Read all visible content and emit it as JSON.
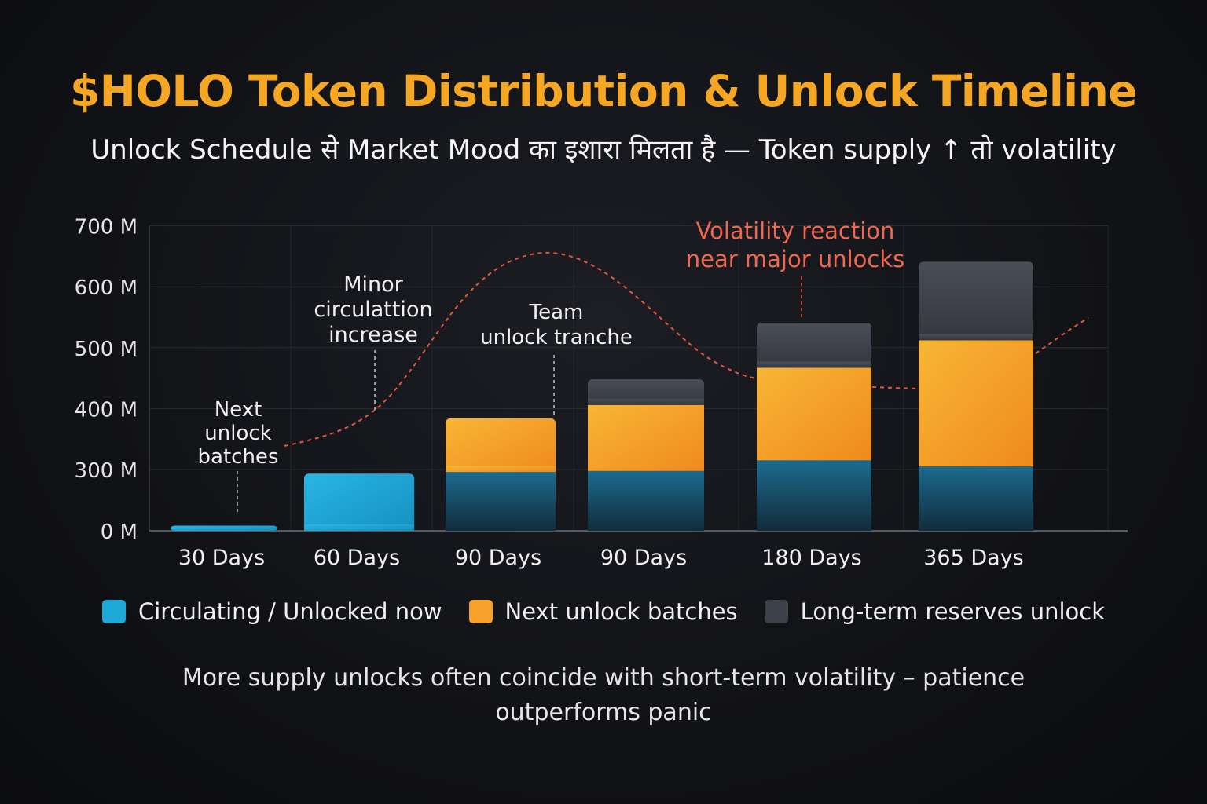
{
  "title": "$HOLO Token Distribution & Unlock Timeline",
  "subtitle": "Unlock Schedule से Market Mood का इशारा मिलता है — Token supply ↑ तो volatility",
  "footnote": {
    "line1": "More supply unlocks often coincide with short-term volatility – patience",
    "line2": "outperforms panic"
  },
  "colors": {
    "title": "#f5a623",
    "circulating": "#1fa9d6",
    "next_unlock": "#f5a12a",
    "reserves": "#3c4048",
    "annotation_red": "#f0674f"
  },
  "legend": [
    {
      "label": "Circulating / Unlocked now",
      "color": "#1fa9d6"
    },
    {
      "label": "Next unlock batches",
      "color": "#f5a12a"
    },
    {
      "label": "Long-term reserves unlock",
      "color": "#3c4048"
    }
  ],
  "chart_data": {
    "type": "bar",
    "stacked": true,
    "categories": [
      "30 Days",
      "60 Days",
      "90 Days",
      "90 Days",
      "180 Days",
      "365 Days"
    ],
    "series": [
      {
        "name": "Circulating / Unlocked now",
        "values": [
          25,
          280,
          288,
          293,
          315,
          305
        ]
      },
      {
        "name": "Next unlock batches",
        "values": [
          0,
          0,
          96,
          113,
          152,
          207
        ]
      },
      {
        "name": "Long-term reserves unlock",
        "values": [
          0,
          0,
          0,
          42,
          74,
          129
        ]
      }
    ],
    "y_ticks": [
      "0 M",
      "300 M",
      "400 M",
      "500 M",
      "600 M",
      "700 M"
    ],
    "ylim": [
      0,
      700
    ],
    "grid": true,
    "annotations": [
      {
        "id": "next",
        "lines": [
          "Next",
          "unlock",
          "batches"
        ]
      },
      {
        "id": "minor",
        "lines": [
          "Minor",
          "circulattion",
          "increase"
        ]
      },
      {
        "id": "team",
        "lines": [
          "Team",
          "unlock tranche"
        ]
      },
      {
        "id": "volatility",
        "lines": [
          "Volatility reaction",
          "near major unlocks"
        ]
      }
    ]
  }
}
